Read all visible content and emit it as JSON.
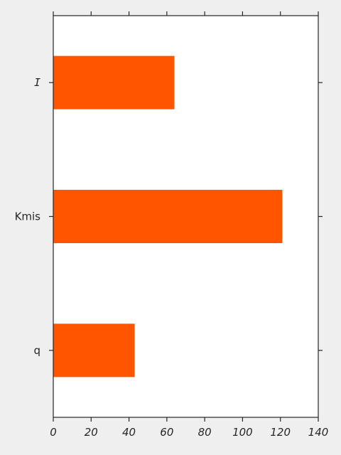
{
  "chart_data": {
    "type": "bar",
    "orientation": "horizontal",
    "categories": [
      "q",
      "Kmis",
      "I"
    ],
    "values": [
      43,
      121,
      64
    ],
    "xlim": [
      0,
      140
    ],
    "xticks": [
      0,
      20,
      40,
      60,
      80,
      100,
      120,
      140
    ],
    "title": "",
    "xlabel": "",
    "ylabel": "",
    "grid": false,
    "bar_color": "#ff5500",
    "plot_background": "#ffffff",
    "figure_background": "#efefef"
  }
}
